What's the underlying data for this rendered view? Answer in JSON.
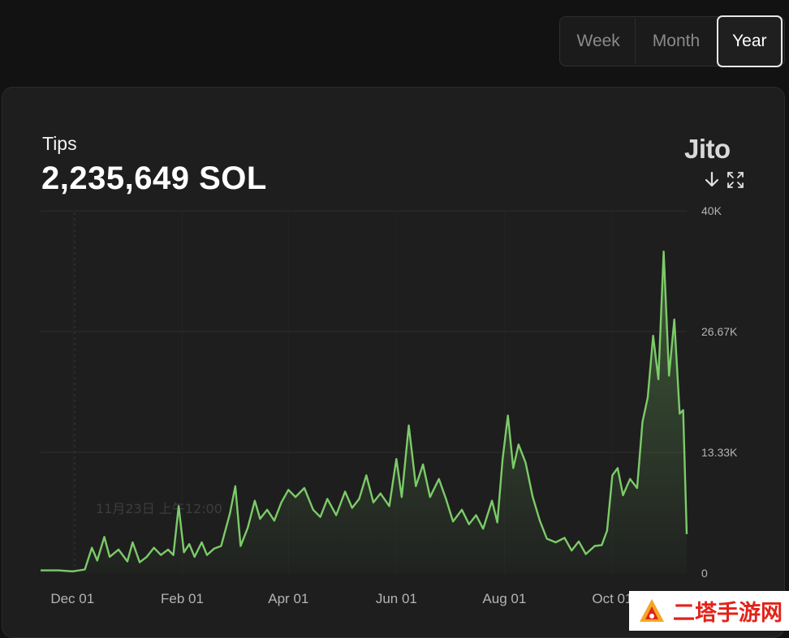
{
  "range_toggle": {
    "options": [
      "Week",
      "Month",
      "Year"
    ],
    "selected": "Year"
  },
  "metric": {
    "label": "Tips",
    "value": "2,235,649 SOL"
  },
  "brand": {
    "name": "Jito"
  },
  "icons": {
    "download": "download-icon",
    "fullscreen": "fullscreen-icon"
  },
  "tooltip_ghost": {
    "date": "11月23日 上午12:00"
  },
  "colors": {
    "line": "#7ccb69",
    "background": "#121212",
    "card": "#1e1e1e",
    "grid": "#2e2e2e",
    "axis_text": "#b4b4b4"
  },
  "watermark": {
    "text": "二塔手游网"
  },
  "chart_data": {
    "type": "area",
    "x_start": "2023-11-13",
    "x_end": "2024-11-12",
    "x_ticks": [
      {
        "date": "2023-12-01",
        "label": "Dec 01"
      },
      {
        "date": "2024-02-01",
        "label": "Feb 01"
      },
      {
        "date": "2024-04-01",
        "label": "Apr 01"
      },
      {
        "date": "2024-06-01",
        "label": "Jun 01"
      },
      {
        "date": "2024-08-01",
        "label": "Aug 01"
      },
      {
        "date": "2024-10-01",
        "label": "Oct 01"
      }
    ],
    "y_ticks": [
      {
        "value": 0,
        "label": "0"
      },
      {
        "value": 13333,
        "label": "13.33K"
      },
      {
        "value": 26667,
        "label": "26.67K"
      },
      {
        "value": 40000,
        "label": "40K"
      }
    ],
    "ylim": [
      0,
      40000
    ],
    "grid": true,
    "series": [
      {
        "points": [
          [
            "2023-11-13",
            300
          ],
          [
            "2023-11-23",
            300
          ],
          [
            "2023-12-01",
            200
          ],
          [
            "2023-12-08",
            400
          ],
          [
            "2023-12-12",
            2800
          ],
          [
            "2023-12-15",
            1400
          ],
          [
            "2023-12-19",
            4000
          ],
          [
            "2023-12-22",
            1800
          ],
          [
            "2023-12-27",
            2600
          ],
          [
            "2024-01-01",
            1300
          ],
          [
            "2024-01-04",
            3400
          ],
          [
            "2024-01-08",
            1200
          ],
          [
            "2024-01-12",
            1800
          ],
          [
            "2024-01-16",
            2800
          ],
          [
            "2024-01-20",
            2000
          ],
          [
            "2024-01-24",
            2600
          ],
          [
            "2024-01-27",
            2000
          ],
          [
            "2024-01-30",
            7400
          ],
          [
            "2024-02-02",
            2300
          ],
          [
            "2024-02-05",
            3200
          ],
          [
            "2024-02-08",
            1800
          ],
          [
            "2024-02-12",
            3400
          ],
          [
            "2024-02-15",
            2000
          ],
          [
            "2024-02-19",
            2700
          ],
          [
            "2024-02-23",
            3000
          ],
          [
            "2024-02-28",
            6600
          ],
          [
            "2024-03-02",
            9600
          ],
          [
            "2024-03-05",
            3000
          ],
          [
            "2024-03-09",
            5000
          ],
          [
            "2024-03-13",
            8000
          ],
          [
            "2024-03-16",
            6000
          ],
          [
            "2024-03-20",
            7000
          ],
          [
            "2024-03-24",
            5800
          ],
          [
            "2024-03-28",
            7800
          ],
          [
            "2024-04-01",
            9200
          ],
          [
            "2024-04-05",
            8400
          ],
          [
            "2024-04-10",
            9400
          ],
          [
            "2024-04-15",
            7000
          ],
          [
            "2024-04-19",
            6200
          ],
          [
            "2024-04-23",
            8200
          ],
          [
            "2024-04-28",
            6400
          ],
          [
            "2024-05-03",
            9000
          ],
          [
            "2024-05-07",
            7200
          ],
          [
            "2024-05-11",
            8200
          ],
          [
            "2024-05-15",
            10800
          ],
          [
            "2024-05-19",
            7800
          ],
          [
            "2024-05-23",
            8800
          ],
          [
            "2024-05-28",
            7400
          ],
          [
            "2024-06-01",
            12600
          ],
          [
            "2024-06-04",
            8400
          ],
          [
            "2024-06-08",
            16300
          ],
          [
            "2024-06-12",
            9600
          ],
          [
            "2024-06-16",
            12000
          ],
          [
            "2024-06-20",
            8400
          ],
          [
            "2024-06-25",
            10400
          ],
          [
            "2024-06-29",
            8200
          ],
          [
            "2024-07-03",
            5700
          ],
          [
            "2024-07-08",
            7000
          ],
          [
            "2024-07-12",
            5400
          ],
          [
            "2024-07-16",
            6400
          ],
          [
            "2024-07-20",
            4900
          ],
          [
            "2024-07-25",
            8000
          ],
          [
            "2024-07-28",
            5600
          ],
          [
            "2024-07-31",
            12600
          ],
          [
            "2024-08-03",
            17400
          ],
          [
            "2024-08-06",
            11600
          ],
          [
            "2024-08-09",
            14200
          ],
          [
            "2024-08-13",
            12200
          ],
          [
            "2024-08-17",
            8400
          ],
          [
            "2024-08-21",
            5800
          ],
          [
            "2024-08-25",
            3800
          ],
          [
            "2024-08-30",
            3400
          ],
          [
            "2024-09-04",
            3900
          ],
          [
            "2024-09-08",
            2500
          ],
          [
            "2024-09-12",
            3500
          ],
          [
            "2024-09-16",
            2100
          ],
          [
            "2024-09-21",
            3000
          ],
          [
            "2024-09-25",
            3100
          ],
          [
            "2024-09-28",
            4700
          ],
          [
            "2024-10-01",
            10800
          ],
          [
            "2024-10-04",
            11600
          ],
          [
            "2024-10-07",
            8600
          ],
          [
            "2024-10-11",
            10400
          ],
          [
            "2024-10-15",
            9400
          ],
          [
            "2024-10-18",
            16700
          ],
          [
            "2024-10-21",
            19400
          ],
          [
            "2024-10-24",
            26200
          ],
          [
            "2024-10-27",
            21400
          ],
          [
            "2024-10-30",
            35500
          ],
          [
            "2024-11-02",
            21800
          ],
          [
            "2024-11-05",
            28000
          ],
          [
            "2024-11-08",
            17600
          ],
          [
            "2024-11-10",
            18000
          ],
          [
            "2024-11-12",
            4300
          ]
        ]
      }
    ]
  }
}
